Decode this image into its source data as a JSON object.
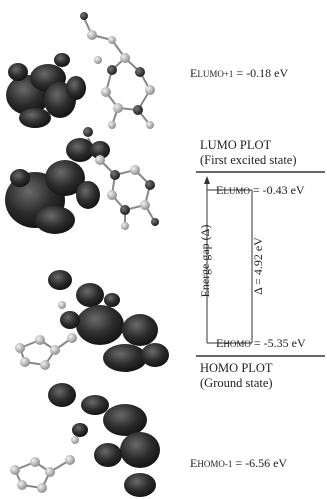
{
  "levels": {
    "lumo_plus1": {
      "label_prefix": "E",
      "label_sub": "LUMO+1",
      "value": "= -0.18 eV"
    },
    "lumo": {
      "label_prefix": "E",
      "label_sub": "LUMO",
      "value": "= -0.43 eV"
    },
    "homo": {
      "label_prefix": "E",
      "label_sub": "HOMO",
      "value": "= -5.35 eV"
    },
    "homo_minus1": {
      "label_prefix": "E",
      "label_sub": "HOMO-1",
      "value": "= -6.56 eV"
    }
  },
  "headings": {
    "lumo_plot": "LUMO PLOT",
    "lumo_state": "(First excited state)",
    "homo_plot": "HOMO PLOT",
    "homo_state": "(Ground state)"
  },
  "axis_label": "Energe gap (Δ)",
  "gap_label": "Δ = 4.92 eV",
  "colors": {
    "lobe": "#2a2a2a",
    "atom_light": "#b5b5b5",
    "atom_dark": "#3a3a3a",
    "line": "#333333"
  }
}
